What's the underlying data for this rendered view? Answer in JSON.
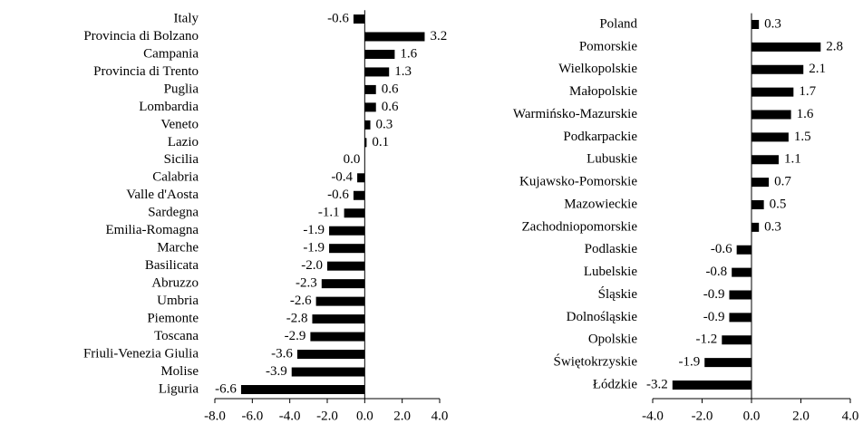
{
  "chart_data": [
    {
      "type": "bar",
      "orientation": "horizontal",
      "color": "#000000",
      "categories": [
        "Italy",
        "Provincia di Bolzano",
        "Campania",
        "Provincia di Trento",
        "Puglia",
        "Lombardia",
        "Veneto",
        "Lazio",
        "Sicilia",
        "Calabria",
        "Valle d'Aosta",
        "Sardegna",
        "Emilia-Romagna",
        "Marche",
        "Basilicata",
        "Abruzzo",
        "Umbria",
        "Piemonte",
        "Toscana",
        "Friuli-Venezia Giulia",
        "Molise",
        "Liguria"
      ],
      "values": [
        -0.6,
        3.2,
        1.6,
        1.3,
        0.6,
        0.6,
        0.3,
        0.1,
        0.0,
        -0.4,
        -0.6,
        -1.1,
        -1.9,
        -1.9,
        -2.0,
        -2.3,
        -2.6,
        -2.8,
        -2.9,
        -3.6,
        -3.9,
        -6.6
      ],
      "value_labels": [
        "-0.6",
        "3.2",
        "1.6",
        "1.3",
        "0.6",
        "0.6",
        "0.3",
        "0.1",
        "0.0",
        "-0.4",
        "-0.6",
        "-1.1",
        "-1.9",
        "-1.9",
        "-2.0",
        "-2.3",
        "-2.6",
        "-2.8",
        "-2.9",
        "-3.6",
        "-3.9",
        "-6.6"
      ],
      "xlim": [
        -8,
        4
      ],
      "xticks": [
        {
          "value": -8,
          "label": "-8.0"
        },
        {
          "value": -6,
          "label": "-6.0"
        },
        {
          "value": -4,
          "label": "-4.0"
        },
        {
          "value": -2,
          "label": "-2.0"
        },
        {
          "value": 0,
          "label": "0.0"
        },
        {
          "value": 2,
          "label": "2.0"
        },
        {
          "value": 4,
          "label": "4.0"
        }
      ]
    },
    {
      "type": "bar",
      "orientation": "horizontal",
      "color": "#000000",
      "categories": [
        "Poland",
        "Pomorskie",
        "Wielkopolskie",
        "Małopolskie",
        "Warmińsko-Mazurskie",
        "Podkarpackie",
        "Lubuskie",
        "Kujawsko-Pomorskie",
        "Mazowieckie",
        "Zachodniopomorskie",
        "Podlaskie",
        "Lubelskie",
        "Śląskie",
        "Dolnośląskie",
        "Opolskie",
        "Świętokrzyskie",
        "Łódzkie"
      ],
      "values": [
        0.3,
        2.8,
        2.1,
        1.7,
        1.6,
        1.5,
        1.1,
        0.7,
        0.5,
        0.3,
        -0.6,
        -0.8,
        -0.9,
        -0.9,
        -1.2,
        -1.9,
        -3.2
      ],
      "xlim": [
        -4,
        4
      ],
      "xticks": [
        {
          "value": -4,
          "label": "-4.0"
        },
        {
          "value": -2,
          "label": "-2.0"
        },
        {
          "value": 0,
          "label": "0.0"
        },
        {
          "value": 2,
          "label": "2.0"
        },
        {
          "value": 4,
          "label": "4.0"
        }
      ]
    }
  ]
}
